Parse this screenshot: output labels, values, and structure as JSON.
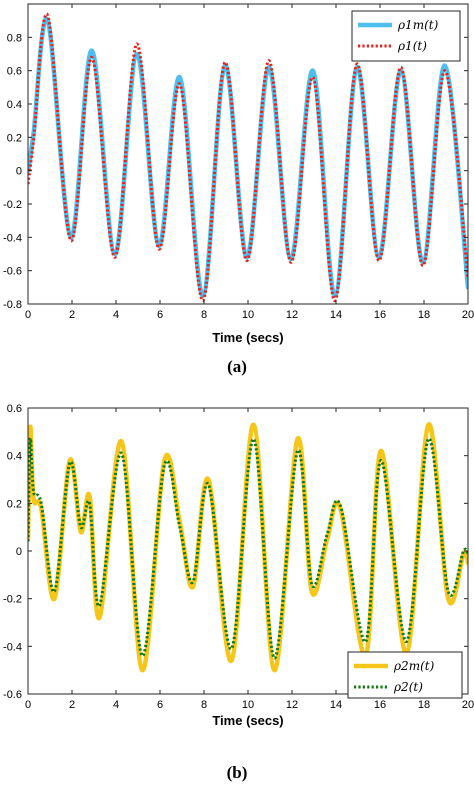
{
  "chart_data": [
    {
      "type": "line",
      "panel_label": "(a)",
      "xlabel": "Time (secs)",
      "ylabel": "",
      "xlim": [
        0,
        20
      ],
      "ylim": [
        -0.8,
        1.0
      ],
      "xticks": [
        0,
        2,
        4,
        6,
        8,
        10,
        12,
        14,
        16,
        18,
        20
      ],
      "yticks": [
        -0.8,
        -0.6,
        -0.4,
        -0.2,
        0,
        0.2,
        0.4,
        0.6,
        0.8
      ],
      "grid": false,
      "legend_position": "top-right",
      "series": [
        {
          "name": "ρ1m(t)",
          "color": "#4DBEEE",
          "style": "solid",
          "x": [
            0,
            0.25,
            0.9,
            1.95,
            2.9,
            3.95,
            4.95,
            5.95,
            6.9,
            7.95,
            8.95,
            9.95,
            10.95,
            11.95,
            12.95,
            13.95,
            14.95,
            15.95,
            16.95,
            17.95,
            18.95,
            20
          ],
          "y": [
            0,
            0.22,
            0.9,
            -0.4,
            0.72,
            -0.5,
            0.7,
            -0.45,
            0.56,
            -0.75,
            0.63,
            -0.52,
            0.62,
            -0.53,
            0.6,
            -0.75,
            0.62,
            -0.52,
            0.6,
            -0.55,
            0.63,
            -0.7
          ]
        },
        {
          "name": "ρ1(t)",
          "color": "#E8221C",
          "style": "dotted",
          "x": [
            0,
            0.25,
            0.9,
            1.95,
            2.9,
            3.95,
            4.95,
            5.95,
            6.9,
            7.95,
            8.95,
            9.95,
            10.95,
            11.95,
            12.95,
            13.95,
            14.95,
            15.95,
            16.95,
            17.95,
            18.95,
            20
          ],
          "y": [
            -0.08,
            0.18,
            0.93,
            -0.42,
            0.68,
            -0.52,
            0.76,
            -0.47,
            0.52,
            -0.78,
            0.65,
            -0.54,
            0.66,
            -0.55,
            0.56,
            -0.78,
            0.64,
            -0.54,
            0.62,
            -0.57,
            0.6,
            -0.65
          ]
        }
      ]
    },
    {
      "type": "line",
      "panel_label": "(b)",
      "xlabel": "Time (secs)",
      "ylabel": "",
      "xlim": [
        0,
        20
      ],
      "ylim": [
        -0.6,
        0.6
      ],
      "xticks": [
        0,
        2,
        4,
        6,
        8,
        10,
        12,
        14,
        16,
        18,
        20
      ],
      "yticks": [
        -0.6,
        -0.4,
        -0.2,
        0,
        0.2,
        0.4,
        0.6
      ],
      "grid": false,
      "legend_position": "bottom-right",
      "series": [
        {
          "name": "ρ2m(t)",
          "color": "#F5C518",
          "style": "solid",
          "x": [
            0,
            0.1,
            0.25,
            0.6,
            1.2,
            1.9,
            2.4,
            2.8,
            3.25,
            4.25,
            5.2,
            6.2,
            6.9,
            7.5,
            8.2,
            9.25,
            10.25,
            11.2,
            12.25,
            12.9,
            13.6,
            14.2,
            15.35,
            16.05,
            17.2,
            18.2,
            19.1,
            19.8,
            20
          ],
          "y": [
            0.05,
            0.52,
            0.22,
            0.18,
            -0.2,
            0.38,
            0.08,
            0.23,
            -0.28,
            0.46,
            -0.5,
            0.38,
            0.12,
            -0.15,
            0.3,
            -0.46,
            0.53,
            -0.5,
            0.47,
            -0.17,
            0.05,
            0.18,
            -0.44,
            0.42,
            -0.43,
            0.53,
            -0.2,
            -0.01,
            -0.05
          ]
        },
        {
          "name": "ρ2(t)",
          "color": "#127A12",
          "style": "dotted",
          "x": [
            0,
            0.1,
            0.25,
            0.6,
            1.2,
            1.9,
            2.4,
            2.8,
            3.25,
            4.25,
            5.2,
            6.2,
            6.9,
            7.5,
            8.2,
            9.25,
            10.25,
            11.2,
            12.25,
            12.9,
            13.6,
            14.2,
            15.35,
            16.05,
            17.2,
            18.2,
            19.1,
            19.8,
            20
          ],
          "y": [
            0.04,
            0.47,
            0.25,
            0.2,
            -0.17,
            0.37,
            0.1,
            0.2,
            -0.23,
            0.41,
            -0.44,
            0.36,
            0.1,
            -0.13,
            0.28,
            -0.41,
            0.47,
            -0.45,
            0.42,
            -0.14,
            0.07,
            0.19,
            -0.38,
            0.38,
            -0.38,
            0.47,
            -0.17,
            0.0,
            -0.02
          ]
        }
      ]
    }
  ]
}
